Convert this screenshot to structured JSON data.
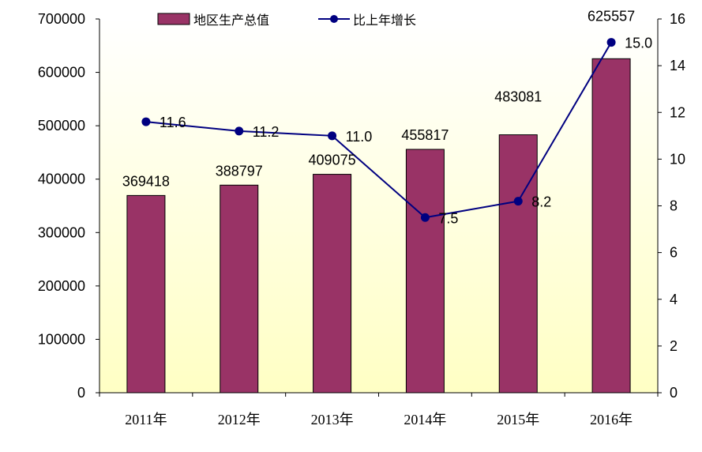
{
  "chart_data": {
    "type": "bar",
    "categories": [
      "2011年",
      "2012年",
      "2013年",
      "2014年",
      "2015年",
      "2016年"
    ],
    "series": [
      {
        "name": "地区生产总值",
        "type": "bar",
        "axis": "left",
        "values": [
          369418,
          388797,
          409075,
          455817,
          483081,
          625557
        ],
        "labels": [
          "369418",
          "388797",
          "409075",
          "455817",
          "483081",
          "625557"
        ],
        "color": "#993366"
      },
      {
        "name": "比上年增长",
        "type": "line",
        "axis": "right",
        "values": [
          11.6,
          11.2,
          11.0,
          7.5,
          8.2,
          15.0
        ],
        "labels": [
          "11.6",
          "11.2",
          "11.0",
          "7.5",
          "8.2",
          "15.0"
        ],
        "color": "#000080"
      }
    ],
    "y_left": {
      "ylim": [
        0,
        700000
      ],
      "ticks": [
        "0",
        "100000",
        "200000",
        "300000",
        "400000",
        "500000",
        "600000",
        "700000"
      ]
    },
    "y_right": {
      "ylim": [
        0,
        16
      ],
      "ticks": [
        "0",
        "2",
        "4",
        "6",
        "8",
        "10",
        "12",
        "14",
        "16"
      ]
    },
    "legend_position": "top",
    "plot_background": "gradient #ffffff to #ffffcc",
    "grid": false
  }
}
